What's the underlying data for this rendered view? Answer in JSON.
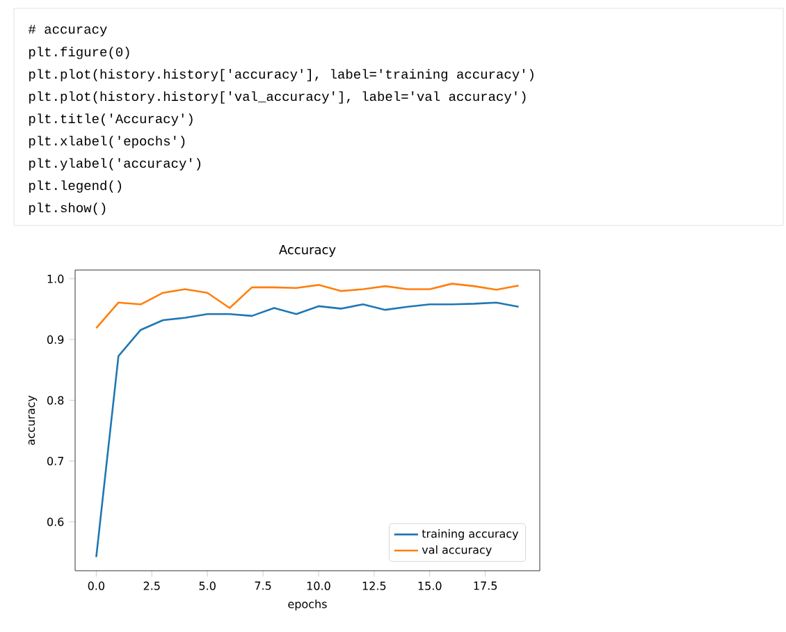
{
  "chart_data": {
    "type": "line",
    "title": "Accuracy",
    "xlabel": "epochs",
    "ylabel": "accuracy",
    "annotations": [
      "# accuracy",
      "plt.figure(0)",
      "plt.plot(history.history['accuracy'], label='training accuracy')",
      "plt.plot(history.history['val_accuracy'], label='val accuracy')",
      "plt.title('Accuracy')",
      "plt.xlabel('epochs')",
      "plt.ylabel('accuracy')",
      "plt.legend()",
      "plt.show()"
    ],
    "x": [
      0,
      1,
      2,
      3,
      4,
      5,
      6,
      7,
      8,
      9,
      10,
      11,
      12,
      13,
      14,
      15,
      16,
      17,
      18,
      19
    ],
    "series": [
      {
        "name": "training accuracy",
        "color": "#1f77b4",
        "values": [
          0.542,
          0.873,
          0.916,
          0.932,
          0.936,
          0.942,
          0.942,
          0.939,
          0.952,
          0.942,
          0.955,
          0.951,
          0.958,
          0.949,
          0.954,
          0.958,
          0.958,
          0.959,
          0.961,
          0.954
        ]
      },
      {
        "name": "val accuracy",
        "color": "#ff7f0e",
        "values": [
          0.919,
          0.961,
          0.958,
          0.977,
          0.983,
          0.977,
          0.952,
          0.986,
          0.986,
          0.985,
          0.99,
          0.98,
          0.983,
          0.988,
          0.983,
          0.983,
          0.992,
          0.988,
          0.982,
          0.989
        ]
      }
    ],
    "xlim": [
      -0.95,
      19.95
    ],
    "ylim": [
      0.5195,
      1.0145
    ],
    "xticks": [
      {
        "value": 0,
        "label": "0.0"
      },
      2.5,
      {
        "value": 5,
        "label": "5.0"
      },
      7.5,
      {
        "value": 10,
        "label": "10.0"
      },
      12.5,
      {
        "value": 15,
        "label": "15.0"
      },
      17.5
    ],
    "yticks": [
      0.6,
      0.7,
      0.8,
      0.9,
      {
        "value": 1,
        "label": "1.0"
      }
    ],
    "legend": "bottom right"
  }
}
